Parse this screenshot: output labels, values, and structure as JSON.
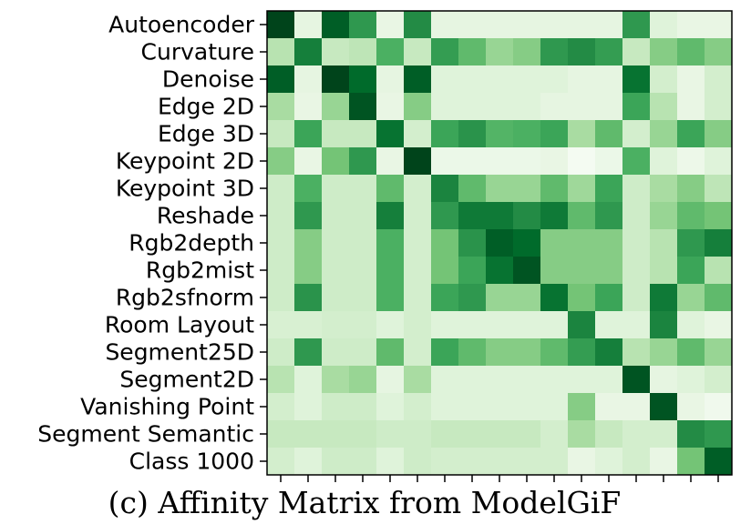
{
  "caption": "(c) Affinity Matrix from ModelGiF",
  "chart_data": {
    "type": "heatmap",
    "title": "",
    "xlabel": "",
    "ylabel": "",
    "colormap": "Greens",
    "value_range": [
      0,
      1
    ],
    "row_labels": [
      "Autoencoder",
      "Curvature",
      "Denoise",
      "Edge 2D",
      "Edge 3D",
      "Keypoint 2D",
      "Keypoint 3D",
      "Reshade",
      "Rgb2depth",
      "Rgb2mist",
      "Rgb2sfnorm",
      "Room Layout",
      "Segment25D",
      "Segment2D",
      "Vanishing Point",
      "Segment Semantic",
      "Class 1000"
    ],
    "x_tick_count": 17,
    "values": [
      [
        1.0,
        0.12,
        0.92,
        0.7,
        0.1,
        0.75,
        0.12,
        0.12,
        0.12,
        0.12,
        0.12,
        0.12,
        0.12,
        0.7,
        0.15,
        0.1,
        0.1
      ],
      [
        0.3,
        0.8,
        0.25,
        0.28,
        0.6,
        0.25,
        0.68,
        0.55,
        0.4,
        0.45,
        0.7,
        0.75,
        0.68,
        0.25,
        0.45,
        0.55,
        0.45
      ],
      [
        0.92,
        0.12,
        1.0,
        0.88,
        0.12,
        0.92,
        0.15,
        0.15,
        0.15,
        0.15,
        0.15,
        0.12,
        0.12,
        0.85,
        0.2,
        0.1,
        0.2
      ],
      [
        0.35,
        0.1,
        0.4,
        0.95,
        0.1,
        0.45,
        0.15,
        0.15,
        0.15,
        0.15,
        0.12,
        0.12,
        0.12,
        0.65,
        0.3,
        0.1,
        0.2
      ],
      [
        0.25,
        0.65,
        0.25,
        0.25,
        0.85,
        0.2,
        0.65,
        0.72,
        0.58,
        0.6,
        0.65,
        0.35,
        0.55,
        0.2,
        0.4,
        0.65,
        0.45
      ],
      [
        0.45,
        0.1,
        0.5,
        0.7,
        0.1,
        1.0,
        0.08,
        0.08,
        0.08,
        0.08,
        0.1,
        0.02,
        0.08,
        0.6,
        0.15,
        0.07,
        0.15
      ],
      [
        0.22,
        0.6,
        0.22,
        0.22,
        0.55,
        0.2,
        0.78,
        0.55,
        0.4,
        0.4,
        0.55,
        0.38,
        0.65,
        0.22,
        0.35,
        0.45,
        0.28
      ],
      [
        0.22,
        0.7,
        0.22,
        0.22,
        0.8,
        0.2,
        0.7,
        0.82,
        0.82,
        0.75,
        0.82,
        0.55,
        0.7,
        0.22,
        0.4,
        0.55,
        0.5
      ],
      [
        0.22,
        0.45,
        0.22,
        0.22,
        0.6,
        0.2,
        0.5,
        0.72,
        0.92,
        0.88,
        0.45,
        0.45,
        0.45,
        0.22,
        0.3,
        0.7,
        0.8
      ],
      [
        0.22,
        0.45,
        0.22,
        0.22,
        0.6,
        0.2,
        0.5,
        0.65,
        0.85,
        0.95,
        0.45,
        0.45,
        0.45,
        0.22,
        0.3,
        0.65,
        0.3
      ],
      [
        0.22,
        0.72,
        0.22,
        0.22,
        0.6,
        0.2,
        0.65,
        0.7,
        0.4,
        0.4,
        0.85,
        0.5,
        0.65,
        0.22,
        0.82,
        0.4,
        0.55
      ],
      [
        0.18,
        0.18,
        0.2,
        0.2,
        0.15,
        0.2,
        0.15,
        0.15,
        0.15,
        0.15,
        0.15,
        0.78,
        0.15,
        0.15,
        0.78,
        0.15,
        0.1
      ],
      [
        0.22,
        0.7,
        0.22,
        0.22,
        0.55,
        0.2,
        0.65,
        0.55,
        0.45,
        0.45,
        0.55,
        0.68,
        0.8,
        0.3,
        0.4,
        0.55,
        0.4
      ],
      [
        0.3,
        0.15,
        0.35,
        0.4,
        0.12,
        0.35,
        0.15,
        0.15,
        0.15,
        0.15,
        0.15,
        0.15,
        0.15,
        0.95,
        0.12,
        0.15,
        0.2
      ],
      [
        0.2,
        0.15,
        0.22,
        0.22,
        0.15,
        0.2,
        0.15,
        0.15,
        0.15,
        0.15,
        0.15,
        0.45,
        0.1,
        0.1,
        0.95,
        0.1,
        0.05
      ],
      [
        0.25,
        0.25,
        0.25,
        0.25,
        0.22,
        0.22,
        0.25,
        0.25,
        0.25,
        0.25,
        0.2,
        0.35,
        0.25,
        0.2,
        0.2,
        0.75,
        0.7
      ],
      [
        0.2,
        0.15,
        0.22,
        0.22,
        0.15,
        0.22,
        0.2,
        0.2,
        0.2,
        0.2,
        0.2,
        0.1,
        0.15,
        0.2,
        0.1,
        0.5,
        0.92
      ]
    ]
  }
}
